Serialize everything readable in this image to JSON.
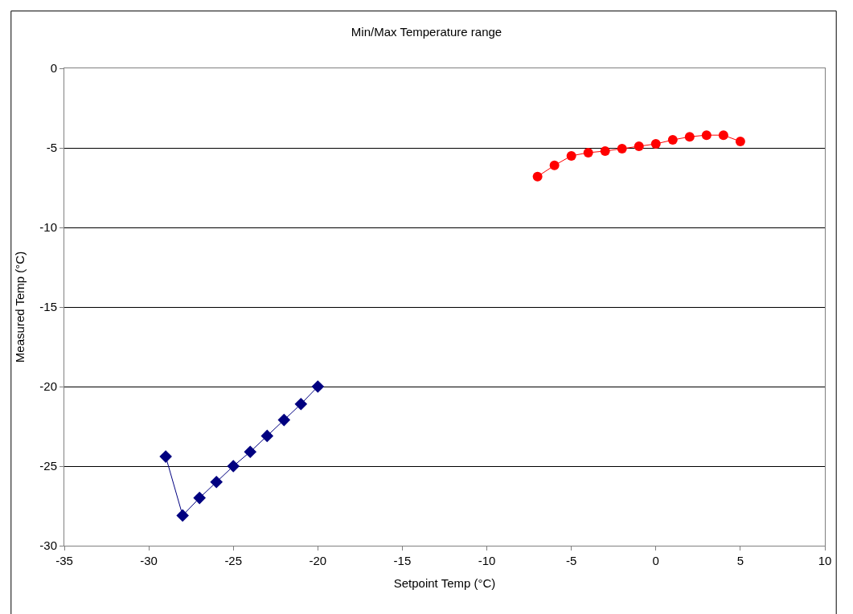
{
  "chart_data": {
    "type": "line",
    "title": "Min/Max Temperature range",
    "xlabel": "Setpoint Temp (°C)",
    "ylabel": "Measured Temp (°C)",
    "xlim": [
      -35,
      10
    ],
    "xticks": [
      -35,
      -30,
      -25,
      -20,
      -15,
      -10,
      -5,
      0,
      5,
      10
    ],
    "ylim": [
      -30,
      0
    ],
    "yticks": [
      -30,
      -25,
      -20,
      -15,
      -10,
      -5,
      0
    ],
    "grid": "y",
    "series": [
      {
        "color": "#000080",
        "marker": "diamond",
        "x": [
          -29,
          -28,
          -27,
          -26,
          -25,
          -24,
          -23,
          -22,
          -21,
          -20
        ],
        "values": [
          -24.4,
          -28.1,
          -27,
          -26,
          -25,
          -24.1,
          -23.1,
          -22.1,
          -21.1,
          -20
        ]
      },
      {
        "color": "#ff0000",
        "marker": "circle",
        "x": [
          -7,
          -6,
          -5,
          -4,
          -3,
          -2,
          -1,
          0,
          1,
          2,
          3,
          4,
          5
        ],
        "values": [
          -6.8,
          -6.1,
          -5.5,
          -5.3,
          -5.2,
          -5.05,
          -4.9,
          -4.75,
          -4.5,
          -4.3,
          -4.2,
          -4.2,
          -4.6
        ]
      }
    ]
  }
}
